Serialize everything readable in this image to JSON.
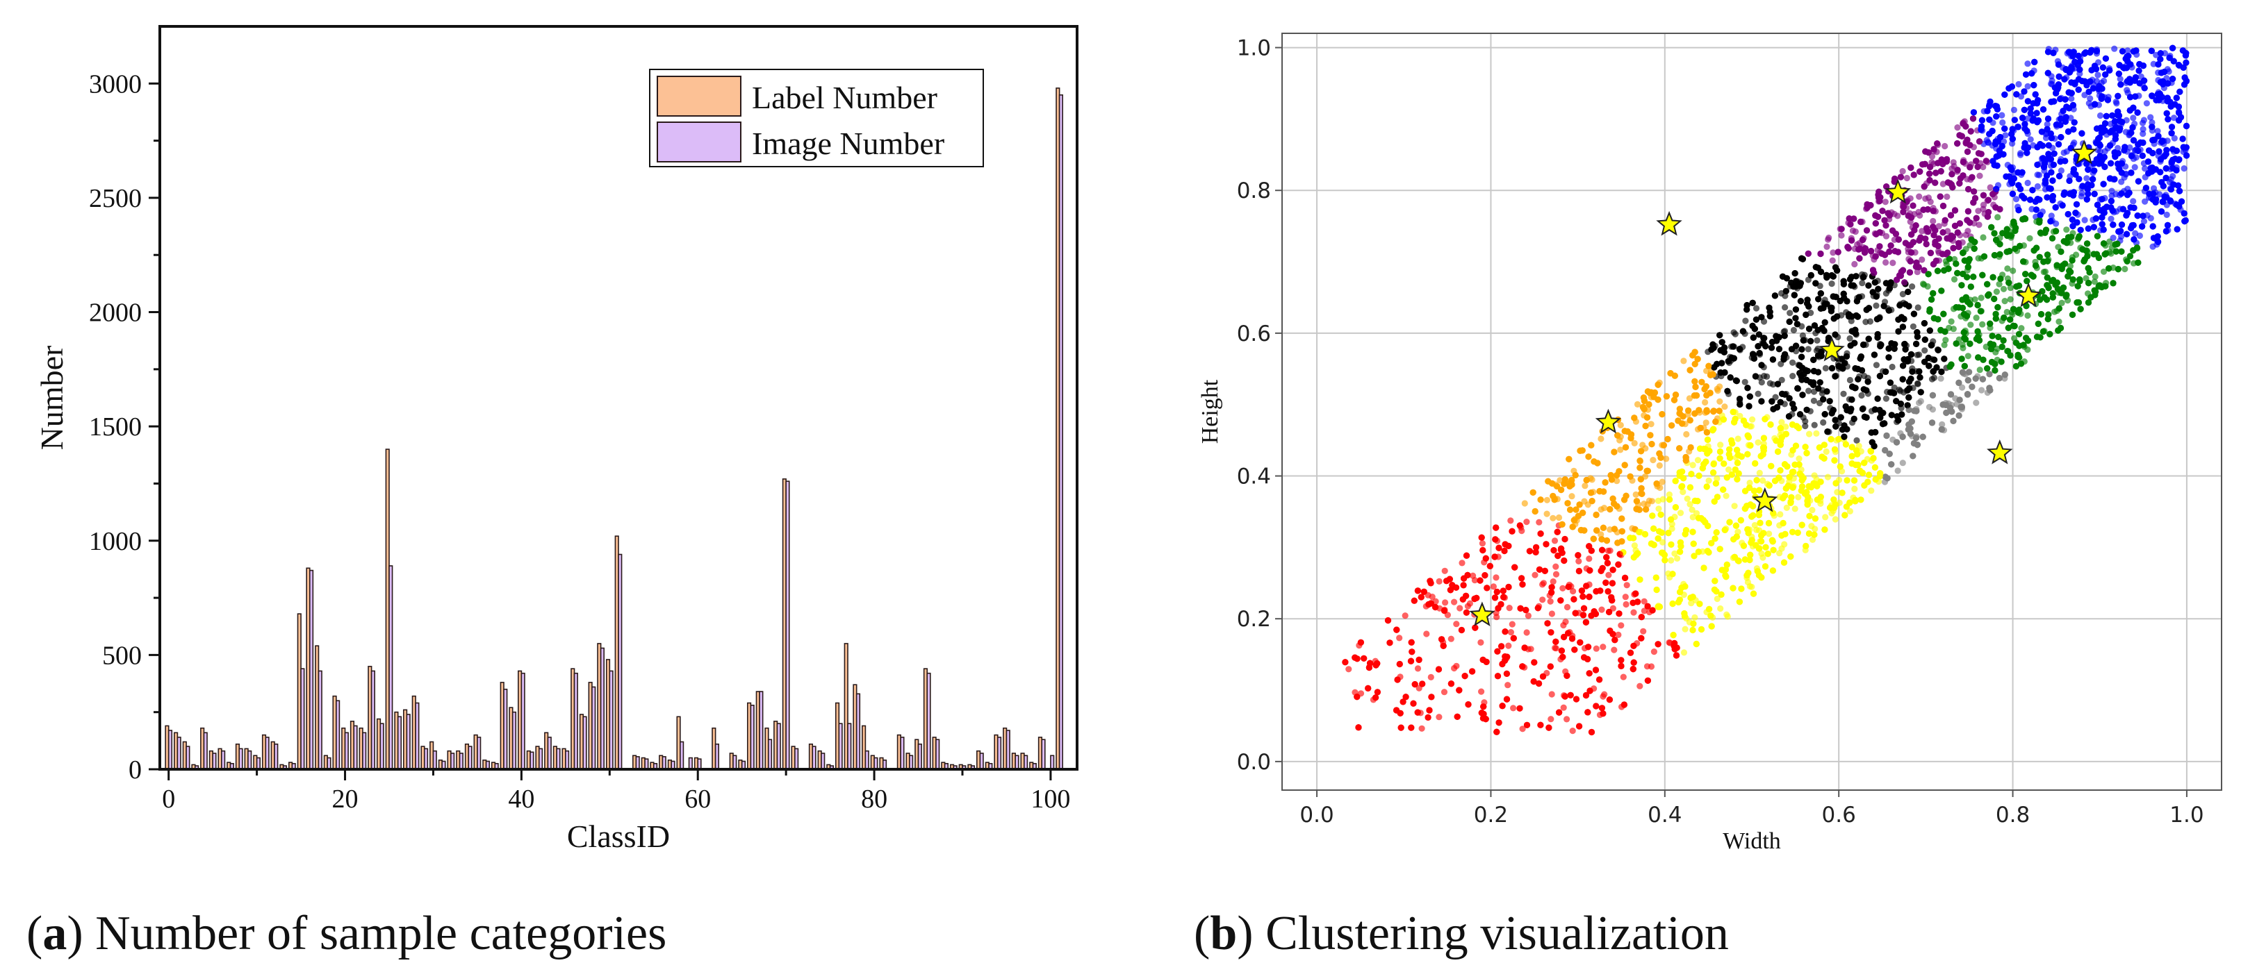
{
  "captions": {
    "a_letter": "a",
    "a_text": "Number of sample categories",
    "b_letter": "b",
    "b_text": "Clustering visualization"
  },
  "chart_data": [
    {
      "type": "bar",
      "xlabel": "ClassID",
      "ylabel": "Number",
      "xlim": [
        -1,
        103
      ],
      "ylim": [
        0,
        3250
      ],
      "xticks": [
        0,
        20,
        40,
        60,
        80,
        100
      ],
      "yticks": [
        0,
        500,
        1000,
        1500,
        2000,
        2500,
        3000
      ],
      "legend_position": "top-right",
      "colors": {
        "label": "#fcc195",
        "image": "#dcbcf8",
        "edge": "#2a1a1a"
      },
      "series": [
        {
          "name": "Label Number",
          "values": [
            190,
            160,
            120,
            20,
            180,
            80,
            90,
            30,
            110,
            90,
            60,
            150,
            120,
            20,
            30,
            680,
            880,
            540,
            60,
            320,
            180,
            210,
            180,
            450,
            220,
            1400,
            250,
            260,
            320,
            100,
            120,
            40,
            80,
            80,
            110,
            150,
            40,
            30,
            380,
            270,
            430,
            80,
            100,
            160,
            100,
            90,
            440,
            240,
            380,
            550,
            480,
            1020,
            0,
            60,
            50,
            30,
            60,
            40,
            230,
            0,
            50,
            0,
            180,
            0,
            70,
            40,
            290,
            340,
            180,
            210,
            1270,
            100,
            0,
            110,
            80,
            20,
            290,
            550,
            370,
            190,
            60,
            50,
            0,
            150,
            70,
            130,
            440,
            140,
            30,
            20,
            20,
            20,
            80,
            30,
            150,
            180,
            70,
            70,
            30,
            140,
            0,
            2980
          ]
        },
        {
          "name": "Image Number",
          "values": [
            170,
            140,
            100,
            15,
            160,
            70,
            80,
            25,
            90,
            80,
            50,
            140,
            110,
            15,
            25,
            440,
            870,
            430,
            50,
            300,
            160,
            190,
            160,
            430,
            200,
            890,
            230,
            240,
            290,
            90,
            80,
            35,
            70,
            70,
            100,
            140,
            35,
            25,
            350,
            250,
            420,
            75,
            90,
            140,
            90,
            80,
            420,
            230,
            360,
            530,
            430,
            940,
            0,
            55,
            45,
            25,
            55,
            35,
            120,
            50,
            45,
            0,
            110,
            0,
            60,
            35,
            280,
            340,
            130,
            200,
            1260,
            90,
            0,
            100,
            70,
            15,
            200,
            200,
            330,
            80,
            50,
            40,
            0,
            140,
            60,
            110,
            420,
            130,
            25,
            15,
            15,
            15,
            70,
            25,
            140,
            170,
            60,
            60,
            25,
            130,
            60,
            2950
          ]
        }
      ]
    },
    {
      "type": "scatter",
      "xlabel": "Width",
      "ylabel": "Height",
      "xlim": [
        -0.04,
        1.04
      ],
      "ylim": [
        -0.04,
        1.02
      ],
      "xticks": [
        0.0,
        0.2,
        0.4,
        0.6,
        0.8,
        1.0
      ],
      "yticks": [
        0.0,
        0.2,
        0.4,
        0.6,
        0.8,
        1.0
      ],
      "grid": true,
      "clusters": [
        {
          "color": "#ff0000",
          "center": [
            0.19,
            0.205
          ]
        },
        {
          "color": "#ffa500",
          "center": [
            0.335,
            0.475
          ]
        },
        {
          "color": "#ffff00",
          "center": [
            0.515,
            0.365
          ]
        },
        {
          "color": "#808080",
          "center": [
            0.785,
            0.432
          ]
        },
        {
          "color": "#000000",
          "center": [
            0.592,
            0.576
          ]
        },
        {
          "color": "#008000",
          "center": [
            0.818,
            0.652
          ]
        },
        {
          "color": "#ffc0cb",
          "center": [
            0.405,
            0.752
          ]
        },
        {
          "color": "#800080",
          "center": [
            0.668,
            0.797
          ]
        },
        {
          "color": "#0000ff",
          "center": [
            0.882,
            0.852
          ]
        }
      ],
      "center_marker_color": "#ffff00"
    }
  ]
}
